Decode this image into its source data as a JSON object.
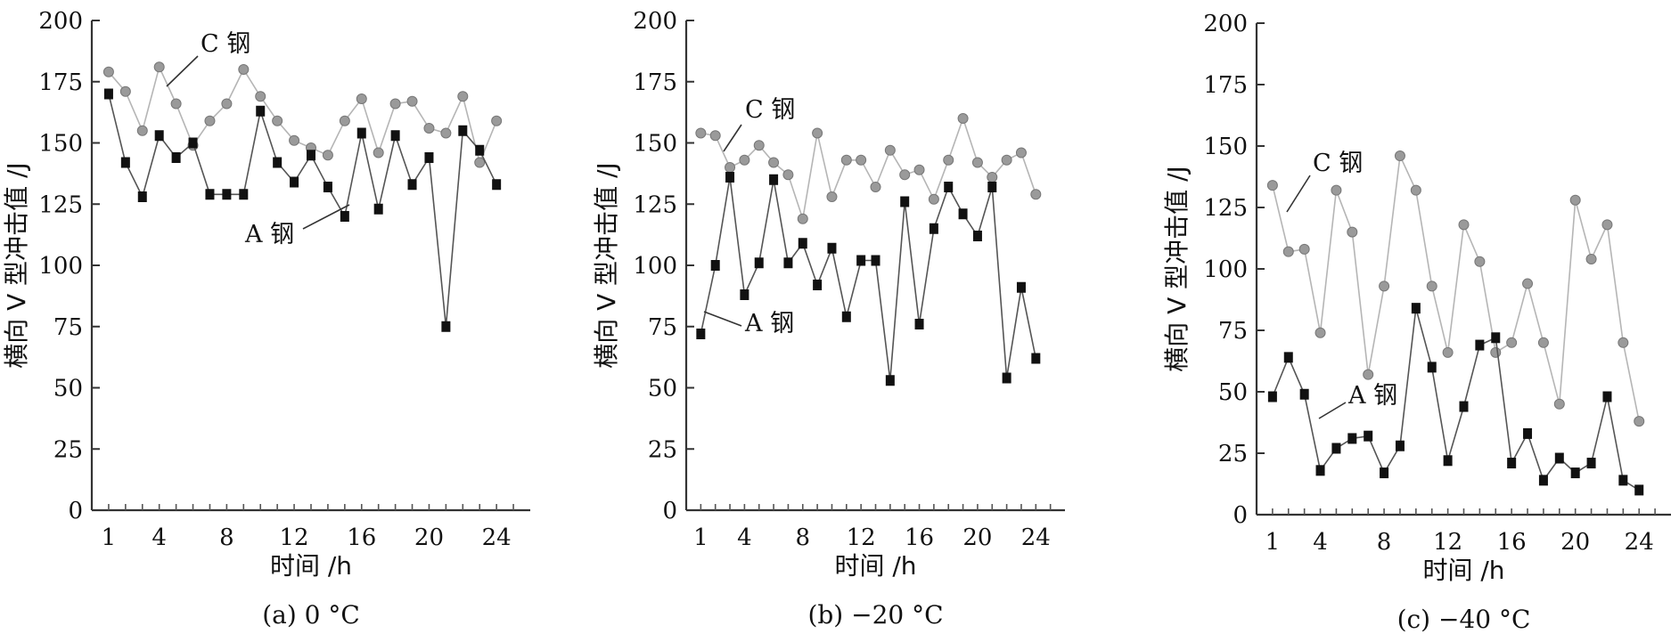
{
  "chart_data": [
    {
      "type": "line",
      "caption": "(a) 0 °C",
      "xlabel": "时间 /h",
      "ylabel": "横向 V 型冲击值 /J",
      "xlim": [
        0,
        26
      ],
      "ylim": [
        0,
        200
      ],
      "xticks": [
        1,
        4,
        8,
        12,
        16,
        20,
        24
      ],
      "yticks": [
        0,
        25,
        50,
        75,
        100,
        125,
        150,
        175,
        200
      ],
      "x": [
        1,
        2,
        3,
        4,
        5,
        6,
        7,
        8,
        9,
        10,
        11,
        12,
        13,
        14,
        15,
        16,
        17,
        18,
        19,
        20,
        21,
        22,
        23,
        24
      ],
      "series": [
        {
          "name": "C 钢",
          "color": "#9a9a9a",
          "marker": "circle",
          "values": [
            179,
            171,
            155,
            181,
            166,
            149,
            159,
            166,
            180,
            169,
            159,
            151,
            148,
            145,
            159,
            168,
            146,
            166,
            167,
            156,
            154,
            169,
            142,
            159
          ]
        },
        {
          "name": "A 钢",
          "color": "#111111",
          "marker": "square",
          "values": [
            170,
            142,
            128,
            153,
            144,
            150,
            129,
            129,
            129,
            163,
            142,
            134,
            145,
            132,
            120,
            154,
            123,
            153,
            133,
            144,
            75,
            155,
            147,
            133
          ]
        }
      ]
    },
    {
      "type": "line",
      "caption": "(b) −20 °C",
      "xlabel": "时间 /h",
      "ylabel": "横向 V 型冲击值 /J",
      "xlim": [
        0,
        26
      ],
      "ylim": [
        0,
        200
      ],
      "xticks": [
        1,
        4,
        8,
        12,
        16,
        20,
        24
      ],
      "yticks": [
        0,
        25,
        50,
        75,
        100,
        125,
        150,
        175,
        200
      ],
      "x": [
        1,
        2,
        3,
        4,
        5,
        6,
        7,
        8,
        9,
        10,
        11,
        12,
        13,
        14,
        15,
        16,
        17,
        18,
        19,
        20,
        21,
        22,
        23,
        24
      ],
      "series": [
        {
          "name": "C 钢",
          "color": "#9a9a9a",
          "marker": "circle",
          "values": [
            154,
            153,
            140,
            143,
            149,
            142,
            137,
            119,
            154,
            128,
            143,
            143,
            132,
            147,
            137,
            139,
            127,
            143,
            160,
            142,
            136,
            143,
            146,
            129
          ]
        },
        {
          "name": "A 钢",
          "color": "#111111",
          "marker": "square",
          "values": [
            72,
            100,
            136,
            88,
            101,
            135,
            101,
            109,
            92,
            107,
            79,
            102,
            102,
            53,
            126,
            76,
            115,
            132,
            121,
            112,
            132,
            54,
            91,
            62
          ]
        }
      ]
    },
    {
      "type": "line",
      "caption": "(c) −40 °C",
      "xlabel": "时间 /h",
      "ylabel": "横向 V 型冲击值 /J",
      "xlim": [
        0,
        26
      ],
      "ylim": [
        0,
        200
      ],
      "xticks": [
        1,
        4,
        8,
        12,
        16,
        20,
        24
      ],
      "yticks": [
        0,
        25,
        50,
        75,
        100,
        125,
        150,
        175,
        200
      ],
      "x": [
        1,
        2,
        3,
        4,
        5,
        6,
        7,
        8,
        9,
        10,
        11,
        12,
        13,
        14,
        15,
        16,
        17,
        18,
        19,
        20,
        21,
        22,
        23,
        24
      ],
      "series": [
        {
          "name": "C 钢",
          "color": "#9a9a9a",
          "marker": "circle",
          "values": [
            134,
            107,
            108,
            74,
            132,
            115,
            57,
            93,
            146,
            132,
            93,
            66,
            118,
            103,
            66,
            70,
            94,
            70,
            45,
            128,
            104,
            118,
            70,
            38
          ]
        },
        {
          "name": "A 钢",
          "color": "#111111",
          "marker": "square",
          "values": [
            48,
            64,
            49,
            18,
            27,
            31,
            32,
            17,
            28,
            84,
            60,
            22,
            44,
            69,
            72,
            21,
            33,
            14,
            23,
            17,
            21,
            48,
            14,
            10
          ]
        }
      ]
    }
  ]
}
